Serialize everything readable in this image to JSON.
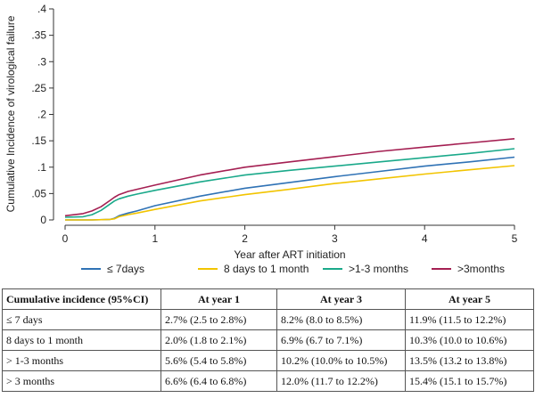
{
  "chart_data": {
    "type": "line",
    "title": "",
    "xlabel": "Year after ART initiation",
    "ylabel": "Cumulative Incidence of virological failure",
    "xlim": [
      0,
      5
    ],
    "ylim": [
      0,
      0.4
    ],
    "xticks": [
      0,
      1,
      2,
      3,
      4,
      5
    ],
    "xtick_labels": [
      "0",
      "1",
      "2",
      "3",
      "4",
      "5"
    ],
    "yticks": [
      0,
      0.05,
      0.1,
      0.15,
      0.2,
      0.25,
      0.3,
      0.35,
      0.4
    ],
    "ytick_labels": [
      "0",
      ".05",
      ".1",
      ".15",
      ".2",
      ".25",
      ".3",
      ".35",
      ".4"
    ],
    "legend_position": "bottom",
    "series": [
      {
        "name": "≤ 7days",
        "color": "#2f72b5",
        "x": [
          0,
          0.3,
          0.5,
          0.55,
          0.6,
          0.7,
          0.8,
          1.0,
          1.5,
          2.0,
          2.5,
          3.0,
          3.5,
          4.0,
          4.5,
          5.0
        ],
        "y": [
          0,
          0,
          0.001,
          0.003,
          0.008,
          0.013,
          0.017,
          0.027,
          0.045,
          0.06,
          0.071,
          0.082,
          0.092,
          0.102,
          0.11,
          0.119
        ]
      },
      {
        "name": "8 days to 1 month",
        "color": "#f2c400",
        "x": [
          0,
          0.3,
          0.5,
          0.55,
          0.6,
          0.7,
          0.8,
          1.0,
          1.5,
          2.0,
          2.5,
          3.0,
          3.5,
          4.0,
          4.5,
          5.0
        ],
        "y": [
          0,
          0,
          0.001,
          0.002,
          0.006,
          0.01,
          0.013,
          0.02,
          0.036,
          0.048,
          0.058,
          0.069,
          0.078,
          0.087,
          0.095,
          0.103
        ]
      },
      {
        "name": ">1-3 months",
        "color": "#1aa98a",
        "x": [
          0,
          0.2,
          0.3,
          0.4,
          0.5,
          0.55,
          0.6,
          0.7,
          0.8,
          1.0,
          1.5,
          2.0,
          2.5,
          3.0,
          3.5,
          4.0,
          4.5,
          5.0
        ],
        "y": [
          0.005,
          0.006,
          0.01,
          0.018,
          0.03,
          0.036,
          0.04,
          0.045,
          0.049,
          0.056,
          0.072,
          0.085,
          0.094,
          0.102,
          0.11,
          0.118,
          0.126,
          0.135
        ]
      },
      {
        "name": ">3months",
        "color": "#a41f52",
        "x": [
          0,
          0.2,
          0.3,
          0.4,
          0.5,
          0.55,
          0.6,
          0.7,
          0.8,
          1.0,
          1.5,
          2.0,
          2.5,
          3.0,
          3.5,
          4.0,
          4.5,
          5.0
        ],
        "y": [
          0.008,
          0.012,
          0.017,
          0.025,
          0.037,
          0.043,
          0.048,
          0.054,
          0.058,
          0.066,
          0.085,
          0.1,
          0.11,
          0.12,
          0.13,
          0.138,
          0.146,
          0.154
        ]
      }
    ]
  },
  "table": {
    "headers": [
      "Cumulative incidence (95%CI)",
      "At year 1",
      "At year 3",
      "At year 5"
    ],
    "rows": [
      [
        "≤ 7 days",
        "2.7% (2.5 to 2.8%)",
        "8.2% (8.0 to 8.5%)",
        "11.9% (11.5 to 12.2%)"
      ],
      [
        "8 days to 1 month",
        "2.0% (1.8 to 2.1%)",
        "6.9% (6.7 to 7.1%)",
        "10.3% (10.0 to 10.6%)"
      ],
      [
        "> 1-3 months",
        "5.6% (5.4 to 5.8%)",
        "10.2% (10.0% to 10.5%)",
        "13.5% (13.2 to 13.8%)"
      ],
      [
        "> 3 months",
        "6.6% (6.4 to 6.8%)",
        "12.0% (11.7 to 12.2%)",
        "15.4% (15.1 to 15.7%)"
      ]
    ]
  }
}
